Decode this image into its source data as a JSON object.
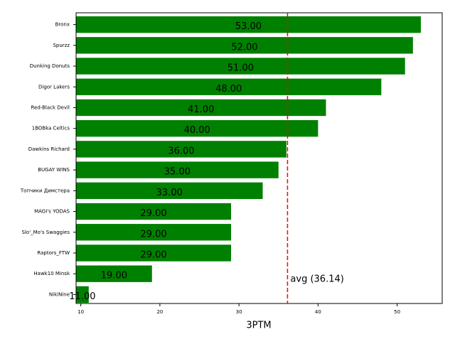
{
  "chart_data": {
    "type": "bar",
    "orientation": "horizontal",
    "x_label": "3PTM",
    "categories": [
      "Bronx",
      "Spurzz",
      "Dunking Donuts",
      "Digor Lakers",
      "Red-Black Devil",
      "1BOBka Celtics",
      "Dawkins Richard",
      "BUGAY WINS",
      "Топчики Димстера",
      "MAGI's YODAS",
      "Slo'_Mo's Swaggies",
      "Raptors_FTW",
      "Hawk10 Minsk",
      "NikiNine"
    ],
    "values": [
      53,
      52,
      51,
      48,
      41,
      40,
      36,
      35,
      33,
      29,
      29,
      29,
      19,
      11
    ],
    "value_labels": [
      "53.00",
      "52.00",
      "51.00",
      "48.00",
      "41.00",
      "40.00",
      "36.00",
      "35.00",
      "33.00",
      "29.00",
      "29.00",
      "29.00",
      "19.00",
      "11.00"
    ],
    "color": "#008000",
    "xlim": [
      9.4,
      55.7
    ],
    "xticks": [
      10,
      20,
      30,
      40,
      50
    ],
    "avg_line": {
      "value": 36.14,
      "label": "avg (36.14)",
      "color": "#ff0000"
    }
  }
}
